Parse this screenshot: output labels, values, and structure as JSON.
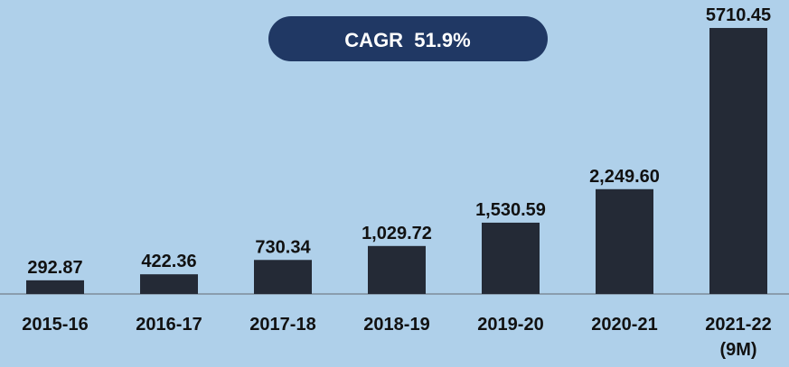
{
  "chart_data": {
    "type": "bar",
    "annotation": "CAGR  51.9%",
    "categories": [
      "2015-16",
      "2016-17",
      "2017-18",
      "2018-19",
      "2019-20",
      "2020-21",
      "2021-22 (9M)"
    ],
    "values": [
      292.87,
      422.36,
      730.34,
      1029.72,
      1530.59,
      2249.6,
      5710.45
    ],
    "value_labels": [
      "292.87",
      "422.36",
      "730.34",
      "1,029.72",
      "1,530.59",
      "2,249.60",
      "5710.45"
    ],
    "color": "#242a36",
    "ylim": [
      0,
      5800
    ]
  }
}
